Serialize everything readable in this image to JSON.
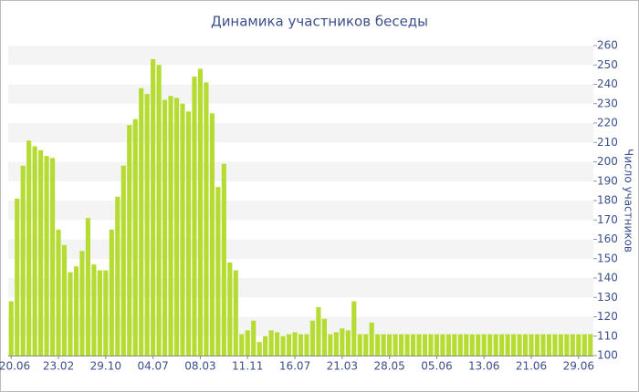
{
  "chart_data": {
    "type": "bar",
    "title": "Динамика участников беседы",
    "y_label": "Число участников",
    "categories": [
      "20.06",
      null,
      null,
      null,
      null,
      null,
      null,
      null,
      "23.02",
      null,
      null,
      null,
      null,
      null,
      null,
      null,
      "29.10",
      null,
      null,
      null,
      null,
      null,
      null,
      null,
      "04.07",
      null,
      null,
      null,
      null,
      null,
      null,
      null,
      "08.03",
      null,
      null,
      null,
      null,
      null,
      null,
      null,
      "11.11",
      null,
      null,
      null,
      null,
      null,
      null,
      null,
      "16.07",
      null,
      null,
      null,
      null,
      null,
      null,
      null,
      "21.03",
      null,
      null,
      null,
      null,
      null,
      null,
      null,
      "28.05",
      null,
      null,
      null,
      null,
      null,
      null,
      null,
      "05.06",
      null,
      null,
      null,
      null,
      null,
      null,
      null,
      "13.06",
      null,
      null,
      null,
      null,
      null,
      null,
      null,
      "21.06",
      null,
      null,
      null,
      null,
      null,
      null,
      null,
      "29.06",
      null,
      null
    ],
    "values": [
      128,
      181,
      198,
      211,
      208,
      206,
      203,
      202,
      165,
      157,
      143,
      146,
      154,
      171,
      147,
      144,
      144,
      165,
      182,
      198,
      219,
      222,
      238,
      235,
      253,
      250,
      232,
      234,
      233,
      230,
      226,
      244,
      248,
      241,
      225,
      187,
      199,
      148,
      144,
      111,
      113,
      118,
      107,
      110,
      113,
      112,
      110,
      111,
      112,
      111,
      111,
      118,
      125,
      119,
      111,
      112,
      114,
      113,
      128,
      111,
      111,
      117,
      111,
      111,
      111,
      111,
      111,
      111,
      111,
      111,
      111,
      111,
      111,
      111,
      111,
      111,
      111,
      111,
      111,
      111,
      111,
      111,
      111,
      111,
      111,
      111,
      111,
      111,
      111,
      111,
      111,
      111,
      111,
      111,
      111,
      111,
      111,
      111,
      111
    ],
    "color": "#b6dc34",
    "ylim": [
      100,
      260
    ],
    "yticks": [
      100,
      110,
      120,
      130,
      140,
      150,
      160,
      170,
      180,
      190,
      200,
      210,
      220,
      230,
      240,
      250,
      260
    ],
    "grid": true
  }
}
